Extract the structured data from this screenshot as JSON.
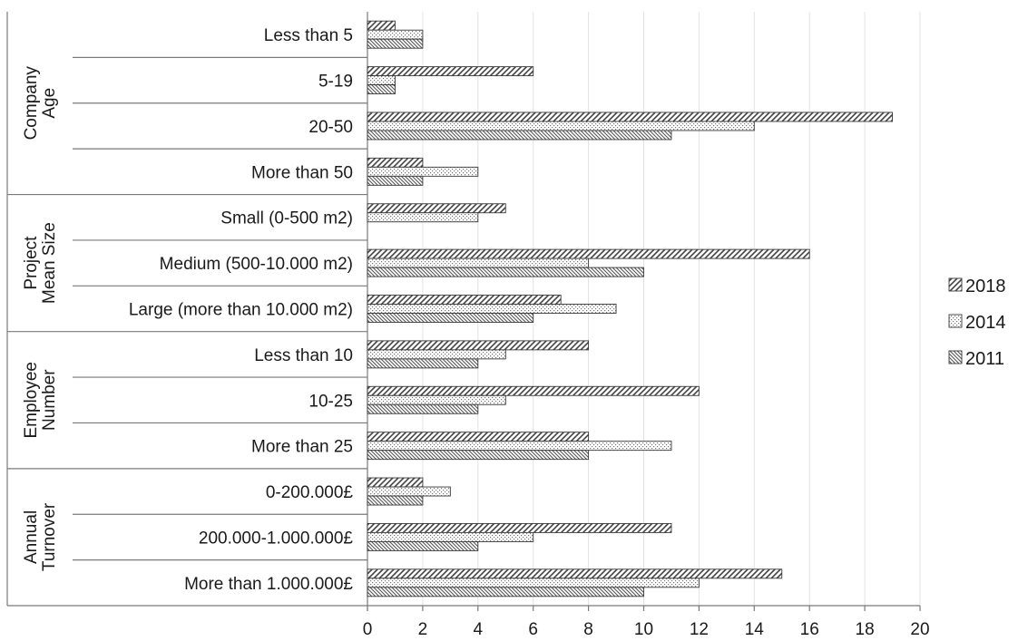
{
  "chart_data": {
    "type": "bar",
    "orientation": "horizontal",
    "groups": [
      {
        "label_lines": [
          "Company",
          "Age"
        ],
        "categories": [
          "Less than 5",
          "5-19",
          "20-50",
          "More than 50"
        ]
      },
      {
        "label_lines": [
          "Project",
          "Mean Size"
        ],
        "categories": [
          "Small (0-500 m2)",
          "Medium (500-10.000 m2)",
          "Large (more than 10.000 m2)"
        ]
      },
      {
        "label_lines": [
          "Employee",
          "Number"
        ],
        "categories": [
          "Less than 10",
          "10-25",
          "More than 25"
        ]
      },
      {
        "label_lines": [
          "Annual",
          "Turnover"
        ],
        "categories": [
          "0-200.000£",
          "200.000-1.000.000£",
          "More than 1.000.000£"
        ]
      }
    ],
    "series": [
      {
        "name": "2018",
        "pattern": "diagonal-hatch",
        "values": [
          1,
          6,
          19,
          2,
          5,
          16,
          7,
          8,
          12,
          8,
          2,
          11,
          15
        ]
      },
      {
        "name": "2014",
        "pattern": "dotted",
        "values": [
          2,
          1,
          14,
          4,
          4,
          8,
          9,
          5,
          5,
          11,
          3,
          6,
          12
        ]
      },
      {
        "name": "2011",
        "pattern": "dense-hatch",
        "values": [
          2,
          1,
          11,
          2,
          0,
          10,
          6,
          4,
          4,
          8,
          2,
          4,
          10
        ]
      }
    ],
    "xlim": [
      0,
      20
    ],
    "xticks": [
      0,
      2,
      4,
      6,
      8,
      10,
      12,
      14,
      16,
      18,
      20
    ],
    "grid": "vertical",
    "legend": "right"
  }
}
